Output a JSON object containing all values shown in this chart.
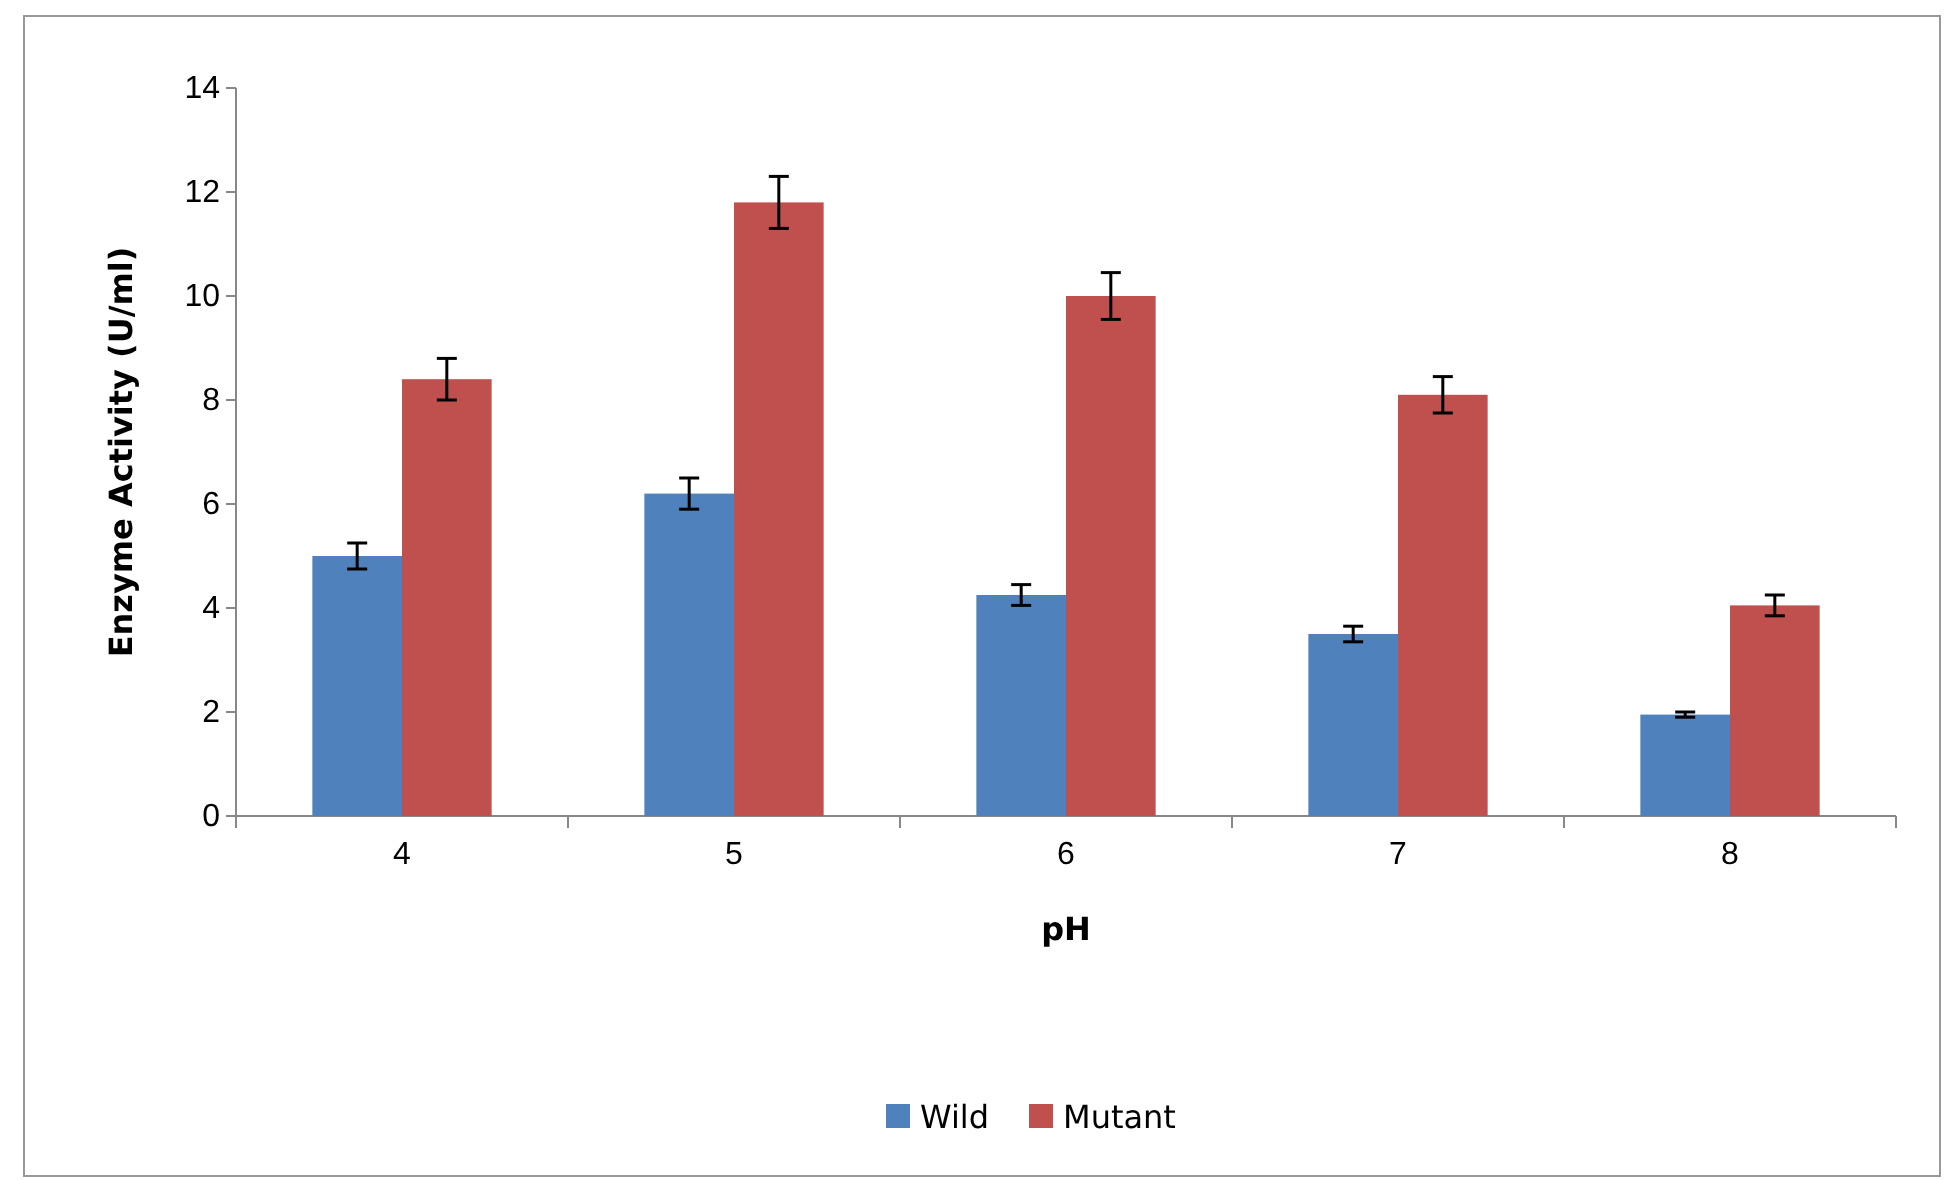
{
  "chart_data": {
    "type": "bar",
    "xlabel": "pH",
    "ylabel": "Enzyme Activity (U/ml)",
    "categories": [
      "4",
      "5",
      "6",
      "7",
      "8"
    ],
    "series": [
      {
        "name": "Wild",
        "color": "#4f81bd",
        "values": [
          5.0,
          6.2,
          4.25,
          3.5,
          1.95
        ],
        "errors": [
          0.25,
          0.3,
          0.2,
          0.15,
          0.05
        ]
      },
      {
        "name": "Mutant",
        "color": "#c0504d",
        "values": [
          8.4,
          11.8,
          10.0,
          8.1,
          4.05
        ],
        "errors": [
          0.4,
          0.5,
          0.45,
          0.35,
          0.2
        ]
      }
    ],
    "ylim": [
      0,
      14
    ],
    "yticks": [
      0,
      2,
      4,
      6,
      8,
      10,
      12,
      14
    ],
    "grid": false,
    "legend": "bottom"
  }
}
